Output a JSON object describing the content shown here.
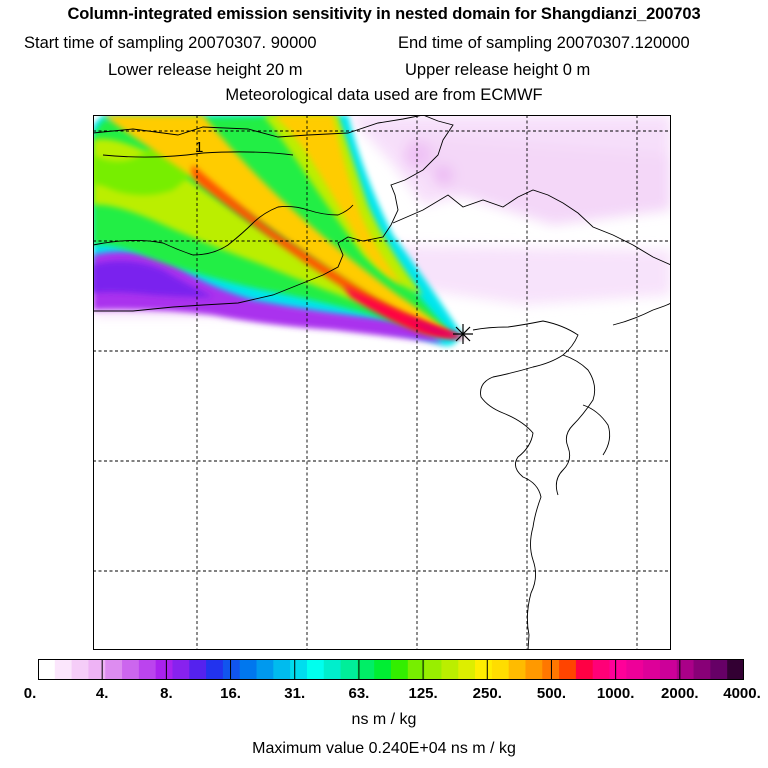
{
  "header": {
    "title": "Column-integrated emission sensitivity in nested domain for Shangdianzi_200703",
    "start_label": "Start time of sampling 20070307. 90000",
    "end_label": "End time of sampling 20070307.120000",
    "lower_label": "Lower release height   20 m",
    "upper_label": "Upper release height    0 m",
    "met_label": "Meteorological data used are from ECMWF"
  },
  "map": {
    "label_1": "1",
    "colors": {
      "land_border": "#000000",
      "grid": "#000000",
      "frame": "#000000"
    }
  },
  "colorbar": {
    "tick_labels": [
      "0.",
      "4.",
      "8.",
      "16.",
      "31.",
      "63.",
      "125.",
      "250.",
      "500.",
      "1000.",
      "2000.",
      "4000."
    ],
    "colors": [
      "#ffffff",
      "#fbe6fc",
      "#f5cdf8",
      "#eeb3f5",
      "#dd8cf0",
      "#cc66ee",
      "#bb44ee",
      "#aa22ee",
      "#8822ee",
      "#5522ee",
      "#2233ee",
      "#1155ee",
      "#0077ee",
      "#0099ee",
      "#00bbee",
      "#00ddee",
      "#00ffee",
      "#00eecc",
      "#00ee99",
      "#00ee66",
      "#00ee33",
      "#33ee00",
      "#77ee00",
      "#99ee00",
      "#bbee00",
      "#ddee00",
      "#ffee00",
      "#ffdd00",
      "#ffbb00",
      "#ff9900",
      "#ff7700",
      "#ff4400",
      "#ff0044",
      "#ff0077",
      "#ff0099",
      "#ee0099",
      "#dd0099",
      "#cc0099",
      "#aa0088",
      "#880077",
      "#660066",
      "#330033"
    ]
  },
  "footer": {
    "units": "ns m / kg",
    "max_value": "Maximum value  0.240E+04 ns m / kg"
  }
}
